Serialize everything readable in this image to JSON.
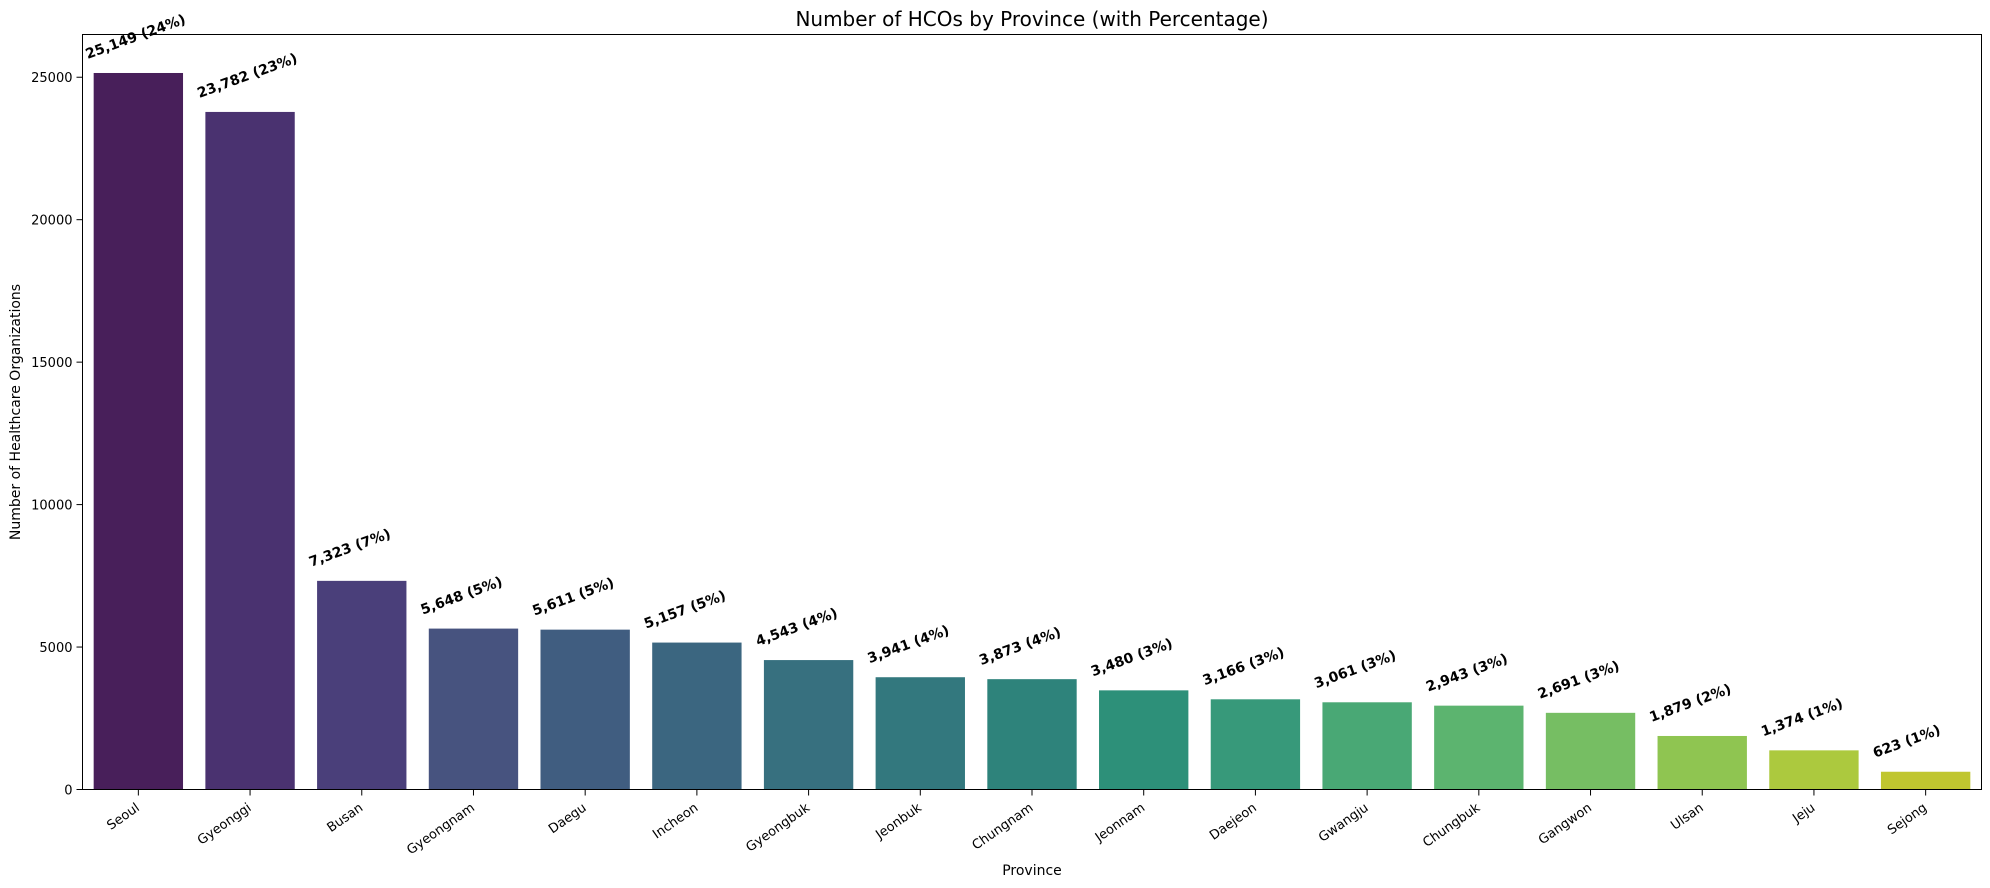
{
  "chart_data": {
    "type": "bar",
    "title": "Number of HCOs by Province (with Percentage)",
    "xlabel": "Province",
    "ylabel": "Number of Healthcare Organizations",
    "ylim": [
      0,
      26500
    ],
    "yticks": [
      0,
      5000,
      10000,
      15000,
      20000,
      25000
    ],
    "grid": false,
    "legend": "none",
    "colormap": "viridis",
    "categories": [
      "Seoul",
      "Gyeonggi",
      "Busan",
      "Gyeongnam",
      "Daegu",
      "Incheon",
      "Gyeongbuk",
      "Jeonbuk",
      "Chungnam",
      "Jeonnam",
      "Daejeon",
      "Gwangju",
      "Chungbuk",
      "Gangwon",
      "Ulsan",
      "Jeju",
      "Sejong"
    ],
    "values": [
      25149,
      23782,
      7323,
      5648,
      5611,
      5157,
      4543,
      3941,
      3873,
      3480,
      3166,
      3061,
      2943,
      2691,
      1879,
      1374,
      623
    ],
    "data_labels": [
      "25,149 (24%)",
      "23,782 (23%)",
      "7,323 (7%)",
      "5,648 (5%)",
      "5,611 (5%)",
      "5,157 (5%)",
      "4,543 (4%)",
      "3,941 (4%)",
      "3,873 (4%)",
      "3,480 (3%)",
      "3,166 (3%)",
      "3,061 (3%)",
      "2,943 (3%)",
      "2,691 (3%)",
      "1,879 (2%)",
      "1,374 (1%)",
      "623 (1%)"
    ],
    "colors": [
      "#481f5a",
      "#4a3270",
      "#4a3f7a",
      "#47537f",
      "#405d80",
      "#3b6680",
      "#37707f",
      "#33787e",
      "#2e837b",
      "#2d9079",
      "#37997a",
      "#49a875",
      "#5cb46f",
      "#76be63",
      "#8fc551",
      "#acc93e",
      "#c0c62f"
    ]
  }
}
